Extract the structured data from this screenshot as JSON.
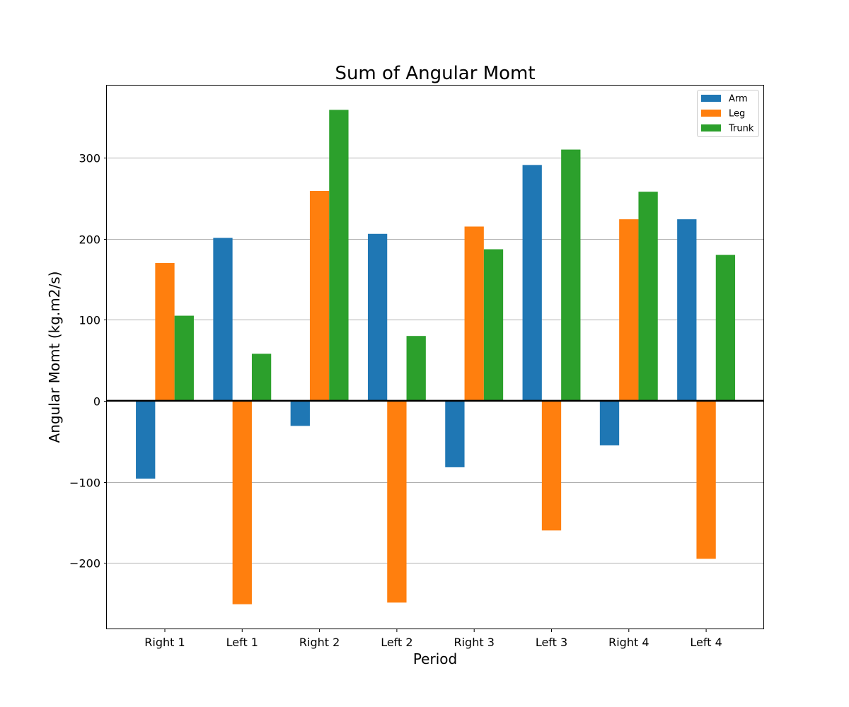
{
  "chart_data": {
    "type": "bar",
    "title": "Sum of Angular Momt",
    "xlabel": "Period",
    "ylabel": "Angular Momt (kg.m2/s)",
    "categories": [
      "Right 1",
      "Left 1",
      "Right 2",
      "Left 2",
      "Right 3",
      "Left 3",
      "Right 4",
      "Left 4"
    ],
    "series": [
      {
        "name": "Arm",
        "color": "#1f77b4",
        "values": [
          -96,
          201,
          -31,
          206,
          -82,
          291,
          -55,
          224
        ]
      },
      {
        "name": "Leg",
        "color": "#ff7f0e",
        "values": [
          170,
          -251,
          259,
          -249,
          215,
          -160,
          224,
          -195
        ]
      },
      {
        "name": "Trunk",
        "color": "#2ca02c",
        "values": [
          105,
          58,
          359,
          80,
          187,
          310,
          258,
          180
        ]
      }
    ],
    "ylim": [
      -281,
      389
    ],
    "yticks": [
      -200,
      -100,
      0,
      100,
      200,
      300
    ],
    "ytick_labels": [
      "−200",
      "−100",
      "0",
      "100",
      "200",
      "300"
    ],
    "grid": "y",
    "zero_line": true,
    "legend_position": "top-right"
  }
}
